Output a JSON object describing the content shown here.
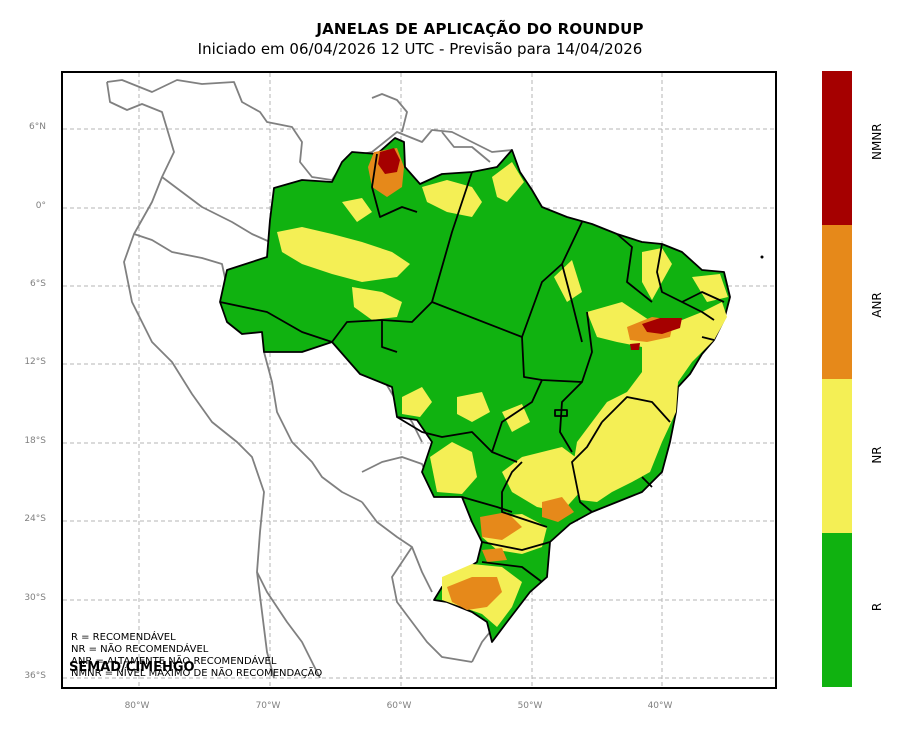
{
  "title": "JANELAS DE APLICAÇÃO DO ROUNDUP",
  "subtitle": "Iniciado em 06/04/2026 12 UTC - Previsão para 14/04/2026",
  "credit": "SEMAD/CIMEHGO",
  "legend_lines": [
    "R = RECOMENDÁVEL",
    "NR = NÃO RECOMENDÁVEL",
    "ANR = ALTAMENTE NÃO RECOMENDÁVEL",
    "NMNR = NÍVEL MÁXIMO DE NÃO RECOMENDAÇÃO"
  ],
  "lat_ticks": [
    "6°N",
    "0°",
    "6°S",
    "12°S",
    "18°S",
    "24°S",
    "30°S",
    "36°S"
  ],
  "lon_ticks": [
    "80°W",
    "70°W",
    "60°W",
    "50°W",
    "40°W"
  ],
  "colorbar": [
    {
      "label": "NMNR",
      "color": "#a50000"
    },
    {
      "label": "ANR",
      "color": "#e6891a"
    },
    {
      "label": "NR",
      "color": "#f4ef55"
    },
    {
      "label": "R",
      "color": "#10b210"
    }
  ],
  "colors": {
    "R": "#10b210",
    "NR": "#f4ef55",
    "ANR": "#e6891a",
    "NMNR": "#a50000",
    "grid": "#b4b4b4",
    "coast": "#808080",
    "border": "#000000"
  }
}
